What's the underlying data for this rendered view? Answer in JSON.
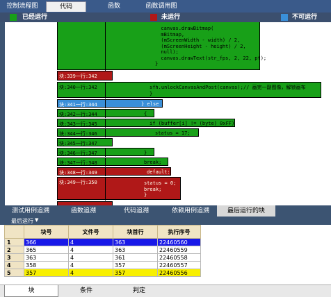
{
  "top_tabs": [
    "控制流程图",
    "代码",
    "函数",
    "函数调用图"
  ],
  "active_top_tab": 1,
  "legend": [
    {
      "label": "已经运行",
      "color": "#18a018"
    },
    {
      "label": "未运行",
      "color": "#b01818"
    },
    {
      "label": "不可运行",
      "color": "#3a8fd8"
    }
  ],
  "blocks": [
    {
      "kind": "g",
      "label": "",
      "code": "  canvas.drawBitmap(\n  mBitmap,\n  (mScreenWidth - width) / 2,\n  (mScreenHeight - height) / 2,\n  null);\n  canvas.drawText(str_fps, 2, 22, pt);\n}"
    },
    {
      "kind": "r",
      "label": "块:339一行:342",
      "code": ""
    },
    {
      "kind": "g",
      "label": "块:340一行:342",
      "code": "sfh.unlockCanvasAndPost(canvas);// 画完一副图像，解锁画布\n}"
    },
    {
      "kind": "b",
      "label": "块:341一行:344",
      "code": "} else"
    },
    {
      "kind": "g",
      "label": "块:342一行:344",
      "code": "{"
    },
    {
      "kind": "g",
      "label": "块:343一行:345",
      "code": "if (buffer[i] != (byte) 0xFF)"
    },
    {
      "kind": "g",
      "label": "块:344一行:346",
      "code": "status = 17;"
    },
    {
      "kind": "g",
      "label": "块:345一行:347",
      "code": ""
    },
    {
      "kind": "g",
      "label": "块:346一行:347",
      "code": "}"
    },
    {
      "kind": "g",
      "label": "块:347一行:348",
      "code": "break;"
    },
    {
      "kind": "r",
      "label": "块:348一行:349",
      "code": "default:"
    },
    {
      "kind": "r",
      "label": "块:349一行:350",
      "code": "status = 0;\nbreak;\n}"
    }
  ],
  "bottom_tabs": [
    "测试用例追溯",
    "函数追溯",
    "代码追溯",
    "依赖用例追溯",
    "最后运行的块"
  ],
  "active_bottom_tab": 4,
  "dropdown_label": "最后运行",
  "table": {
    "columns": [
      "块号",
      "文件号",
      "块首行",
      "执行序号"
    ],
    "rows": [
      {
        "rn": "1",
        "cells": [
          "366",
          "4",
          "363",
          "22460560"
        ],
        "style": "sel"
      },
      {
        "rn": "2",
        "cells": [
          "365",
          "4",
          "363",
          "22460559"
        ],
        "style": ""
      },
      {
        "rn": "3",
        "cells": [
          "363",
          "4",
          "361",
          "22460558"
        ],
        "style": ""
      },
      {
        "rn": "4",
        "cells": [
          "358",
          "4",
          "357",
          "22460557"
        ],
        "style": ""
      },
      {
        "rn": "5",
        "cells": [
          "357",
          "4",
          "357",
          "22460556"
        ],
        "style": "yel"
      }
    ]
  },
  "foot_tabs": [
    "块",
    "条件",
    "判定"
  ],
  "active_foot_tab": 0
}
